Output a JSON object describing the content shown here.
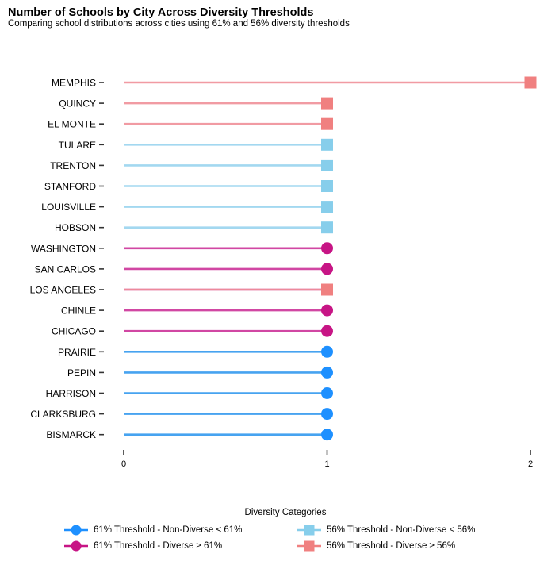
{
  "title": "Number of Schools by City Across Diversity Thresholds",
  "subtitle": "Comparing school distributions across cities using 61% and 56% diversity thresholds",
  "chart_data": {
    "type": "lollipop",
    "orientation": "horizontal",
    "categories": [
      "MEMPHIS",
      "QUINCY",
      "EL MONTE",
      "TULARE",
      "TRENTON",
      "STANFORD",
      "LOUISVILLE",
      "HOBSON",
      "WASHINGTON",
      "SAN CARLOS",
      "LOS ANGELES",
      "CHINLE",
      "CHICAGO",
      "PRAIRIE",
      "PEPIN",
      "HARRISON",
      "CLARKSBURG",
      "BISMARCK"
    ],
    "x_ticks": [
      0,
      1,
      2
    ],
    "xlim": [
      0,
      2
    ],
    "grid": false,
    "legend_position": "bottom",
    "series": [
      {
        "name": "61% Threshold - Non-Diverse < 61%",
        "marker": "circle",
        "color": "#1E90FF",
        "line_color": "#3399EE",
        "points": [
          {
            "category": "PRAIRIE",
            "value": 1
          },
          {
            "category": "PEPIN",
            "value": 1
          },
          {
            "category": "HARRISON",
            "value": 1
          },
          {
            "category": "CLARKSBURG",
            "value": 1
          },
          {
            "category": "BISMARCK",
            "value": 1
          }
        ]
      },
      {
        "name": "61% Threshold - Diverse ≥ 61%",
        "marker": "circle",
        "color": "#C71585",
        "line_color": "#CC3399",
        "points": [
          {
            "category": "WASHINGTON",
            "value": 1
          },
          {
            "category": "SAN CARLOS",
            "value": 1
          },
          {
            "category": "LOS ANGELES",
            "value": 1
          },
          {
            "category": "CHINLE",
            "value": 1
          },
          {
            "category": "CHICAGO",
            "value": 1
          }
        ]
      },
      {
        "name": "56% Threshold - Non-Diverse < 56%",
        "marker": "square",
        "color": "#87CEEB",
        "line_color": "#99D4EE",
        "points": [
          {
            "category": "TULARE",
            "value": 1
          },
          {
            "category": "TRENTON",
            "value": 1
          },
          {
            "category": "STANFORD",
            "value": 1
          },
          {
            "category": "LOUISVILLE",
            "value": 1
          },
          {
            "category": "HOBSON",
            "value": 1
          }
        ]
      },
      {
        "name": "56% Threshold - Diverse ≥ 56%",
        "marker": "square",
        "color": "#F08080",
        "line_color": "#F09099",
        "points": [
          {
            "category": "MEMPHIS",
            "value": 2
          },
          {
            "category": "QUINCY",
            "value": 1
          },
          {
            "category": "EL MONTE",
            "value": 1
          },
          {
            "category": "LOS ANGELES",
            "value": 1
          }
        ]
      }
    ],
    "legend": {
      "title": "Diversity Categories",
      "items": [
        {
          "label": "61% Threshold - Non-Diverse < 61%",
          "marker": "circle",
          "color": "#1E90FF"
        },
        {
          "label": "56% Threshold - Non-Diverse < 56%",
          "marker": "square",
          "color": "#87CEEB"
        },
        {
          "label": "61% Threshold - Diverse ≥ 61%",
          "marker": "circle",
          "color": "#C71585"
        },
        {
          "label": "56% Threshold - Diverse ≥ 56%",
          "marker": "square",
          "color": "#F08080"
        }
      ]
    }
  }
}
